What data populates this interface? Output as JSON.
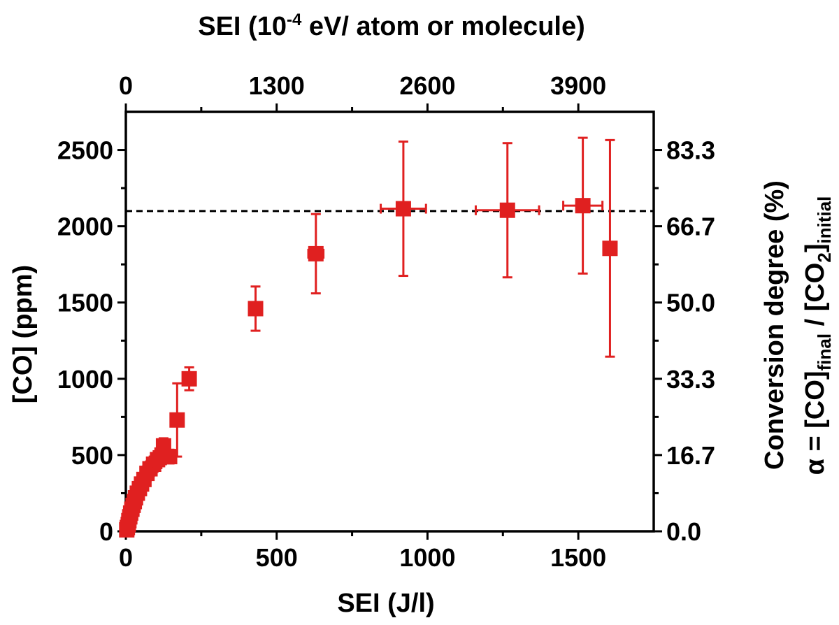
{
  "chart_data": {
    "type": "scatter",
    "title": "",
    "xlabel": "SEI (J/l)",
    "ylabel": "[CO] (ppm)",
    "x2label": "SEI (10-4 eV/ atom or molecule)",
    "y2label_line1": "Conversion degree (%)",
    "y2label_line2": "α = [CO]final / [CO2]initial",
    "xlim": [
      0,
      1750
    ],
    "ylim": [
      0,
      2750
    ],
    "x_ticks": [
      0,
      500,
      1000,
      1500
    ],
    "y_ticks": [
      0,
      500,
      1000,
      1500,
      2000,
      2500
    ],
    "x2_ticks": [
      "0",
      "1300",
      "2600",
      "3900"
    ],
    "x2_tick_positions": [
      0,
      500,
      1000,
      1500
    ],
    "y2_ticks": [
      "0.0",
      "16.7",
      "33.3",
      "50.0",
      "66.7",
      "83.3"
    ],
    "y2_tick_positions": [
      0,
      500,
      1000,
      1500,
      2000,
      2500
    ],
    "reference_line": {
      "y": 2100,
      "style": "dashed",
      "color": "#000000"
    },
    "series": [
      {
        "color": "#e02020",
        "marker": "square",
        "points": [
          {
            "x": 3,
            "y": 10,
            "xerr": 3,
            "yerr": 10
          },
          {
            "x": 5,
            "y": 25,
            "xerr": 3,
            "yerr": 12
          },
          {
            "x": 8,
            "y": 45,
            "xerr": 4,
            "yerr": 15
          },
          {
            "x": 10,
            "y": 70,
            "xerr": 4,
            "yerr": 18
          },
          {
            "x": 13,
            "y": 95,
            "xerr": 5,
            "yerr": 20
          },
          {
            "x": 16,
            "y": 120,
            "xerr": 5,
            "yerr": 22
          },
          {
            "x": 20,
            "y": 145,
            "xerr": 6,
            "yerr": 25
          },
          {
            "x": 24,
            "y": 170,
            "xerr": 6,
            "yerr": 28
          },
          {
            "x": 28,
            "y": 195,
            "xerr": 7,
            "yerr": 30
          },
          {
            "x": 32,
            "y": 220,
            "xerr": 7,
            "yerr": 32
          },
          {
            "x": 38,
            "y": 250,
            "xerr": 8,
            "yerr": 35
          },
          {
            "x": 45,
            "y": 280,
            "xerr": 8,
            "yerr": 38
          },
          {
            "x": 52,
            "y": 310,
            "xerr": 9,
            "yerr": 40
          },
          {
            "x": 60,
            "y": 340,
            "xerr": 10,
            "yerr": 42
          },
          {
            "x": 70,
            "y": 380,
            "xerr": 10,
            "yerr": 45
          },
          {
            "x": 80,
            "y": 410,
            "xerr": 12,
            "yerr": 48
          },
          {
            "x": 92,
            "y": 440,
            "xerr": 12,
            "yerr": 50
          },
          {
            "x": 105,
            "y": 470,
            "xerr": 14,
            "yerr": 55
          },
          {
            "x": 120,
            "y": 500,
            "xerr": 15,
            "yerr": 60
          },
          {
            "x": 125,
            "y": 560,
            "xerr": 15,
            "yerr": 50
          },
          {
            "x": 145,
            "y": 490,
            "xerr": 16,
            "yerr": 45
          },
          {
            "x": 170,
            "y": 730,
            "xerr": 15,
            "yerr": 240
          },
          {
            "x": 210,
            "y": 1000,
            "xerr": 15,
            "yerr": 75
          },
          {
            "x": 430,
            "y": 1460,
            "xerr": 15,
            "yerr": 145
          },
          {
            "x": 630,
            "y": 1820,
            "xerr": 25,
            "yerr": 260
          },
          {
            "x": 920,
            "y": 2115,
            "xerr": 75,
            "yerr": 440
          },
          {
            "x": 1265,
            "y": 2105,
            "xerr": 105,
            "yerr": 440
          },
          {
            "x": 1515,
            "y": 2135,
            "xerr": 65,
            "yerr": 445
          },
          {
            "x": 1605,
            "y": 1855,
            "xerr": 0,
            "yerr": 710
          }
        ]
      }
    ]
  }
}
